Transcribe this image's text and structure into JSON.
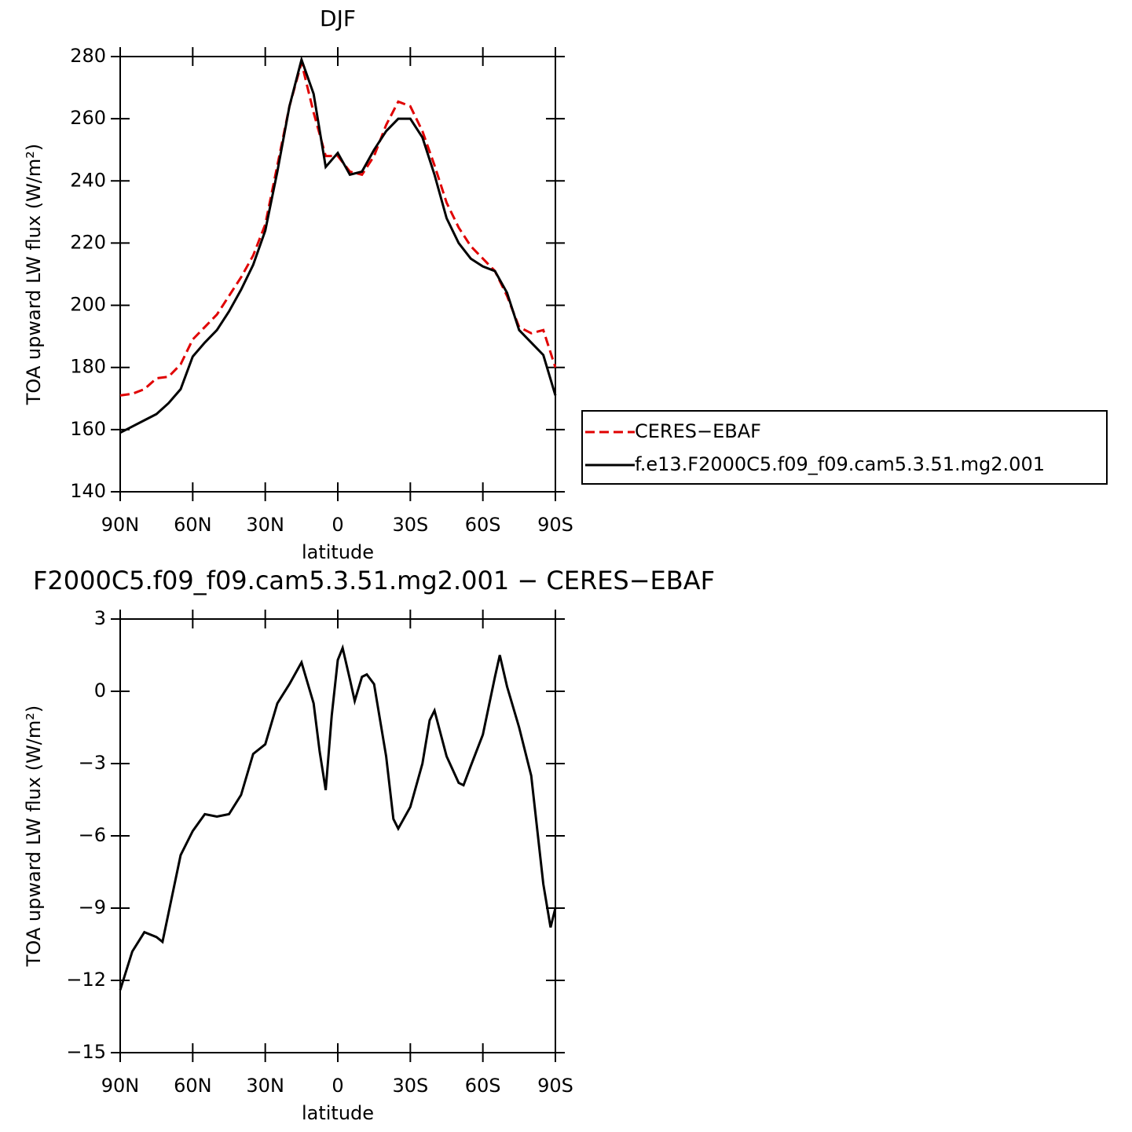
{
  "chart_data": [
    {
      "type": "line",
      "title": "DJF",
      "x_label": "latitude",
      "y_label": "TOA upward LW flux (W/m²)",
      "x": [
        90,
        85,
        80,
        75,
        70,
        65,
        60,
        55,
        50,
        45,
        40,
        35,
        30,
        25,
        20,
        15,
        10,
        5,
        0,
        -5,
        -10,
        -15,
        -20,
        -25,
        -30,
        -35,
        -40,
        -45,
        -50,
        -55,
        -60,
        -65,
        -70,
        -75,
        -80,
        -85,
        -90
      ],
      "series": [
        {
          "name": "CERES−EBAF",
          "color": "#e00000",
          "dash": true,
          "values": [
            171,
            171.5,
            173,
            176.5,
            177,
            181,
            189,
            193,
            197,
            203,
            209,
            216,
            226,
            245,
            264,
            278,
            262,
            248,
            248,
            243,
            242,
            248,
            258,
            265.5,
            264,
            256,
            245,
            233,
            225,
            219,
            215,
            211,
            203,
            193,
            191,
            192,
            180
          ]
        },
        {
          "name": "f.e13.F2000C5.f09_f09.cam5.3.51.mg2.001",
          "color": "#000000",
          "dash": false,
          "values": [
            159,
            161,
            163,
            165,
            168.5,
            173,
            183.5,
            188,
            192,
            198,
            205,
            213,
            224,
            243,
            264,
            279,
            268,
            244.5,
            249,
            242,
            243,
            250,
            256,
            260,
            260,
            254,
            242,
            228,
            220,
            215,
            212.5,
            211,
            204,
            192,
            188,
            184,
            171
          ]
        }
      ],
      "xlim": [
        90,
        -90
      ],
      "xticks": [
        {
          "value": 90,
          "label": "90N"
        },
        {
          "value": 60,
          "label": "60N"
        },
        {
          "value": 30,
          "label": "30N"
        },
        0,
        {
          "value": -30,
          "label": "30S"
        },
        {
          "value": -60,
          "label": "60S"
        },
        {
          "value": -90,
          "label": "90S"
        }
      ],
      "ylim": [
        140,
        280
      ],
      "yticks": [
        140,
        160,
        180,
        200,
        220,
        240,
        260,
        280
      ]
    },
    {
      "type": "line",
      "title": "F2000C5.f09_f09.cam5.3.51.mg2.001 − CERES−EBAF",
      "x_label": "latitude",
      "y_label": "TOA upward LW flux (W/m²)",
      "x": [
        90,
        85,
        80,
        75,
        72.5,
        70,
        65,
        60,
        55,
        50,
        45,
        40,
        35,
        30,
        25,
        20,
        15,
        10,
        7.5,
        5,
        2.5,
        0,
        -2,
        -5,
        -7,
        -10,
        -12,
        -15,
        -20,
        -23,
        -25,
        -30,
        -35,
        -38,
        -40,
        -45,
        -50,
        -52,
        -55,
        -60,
        -65,
        -67,
        -70,
        -75,
        -80,
        -85,
        -88,
        -90
      ],
      "series": [
        {
          "color": "#000000",
          "dash": false,
          "values": [
            -12.4,
            -10.8,
            -10,
            -10.2,
            -10.4,
            -9.2,
            -6.8,
            -5.8,
            -5.1,
            -5.2,
            -5.1,
            -4.3,
            -2.6,
            -2.2,
            -0.5,
            0.3,
            1.2,
            -0.5,
            -2.5,
            -4.1,
            -1,
            1.3,
            1.8,
            0.5,
            -0.4,
            0.6,
            0.7,
            0.3,
            -2.7,
            -5.3,
            -5.7,
            -4.8,
            -3,
            -1.2,
            -0.8,
            -2.7,
            -3.8,
            -3.9,
            -3.1,
            -1.8,
            0.6,
            1.5,
            0.2,
            -1.5,
            -3.5,
            -8,
            -9.8,
            -9
          ]
        }
      ],
      "xlim": [
        90,
        -90
      ],
      "xticks": [
        {
          "value": 90,
          "label": "90N"
        },
        {
          "value": 60,
          "label": "60N"
        },
        {
          "value": 30,
          "label": "30N"
        },
        0,
        {
          "value": -30,
          "label": "30S"
        },
        {
          "value": -60,
          "label": "60S"
        },
        {
          "value": -90,
          "label": "90S"
        }
      ],
      "ylim": [
        -15,
        3
      ],
      "yticks": [
        {
          "value": -15,
          "label": "−15"
        },
        {
          "value": -12,
          "label": "−12"
        },
        {
          "value": -9,
          "label": "−9"
        },
        {
          "value": -6,
          "label": "−6"
        },
        {
          "value": -3,
          "label": "−3"
        },
        0,
        3
      ]
    }
  ]
}
